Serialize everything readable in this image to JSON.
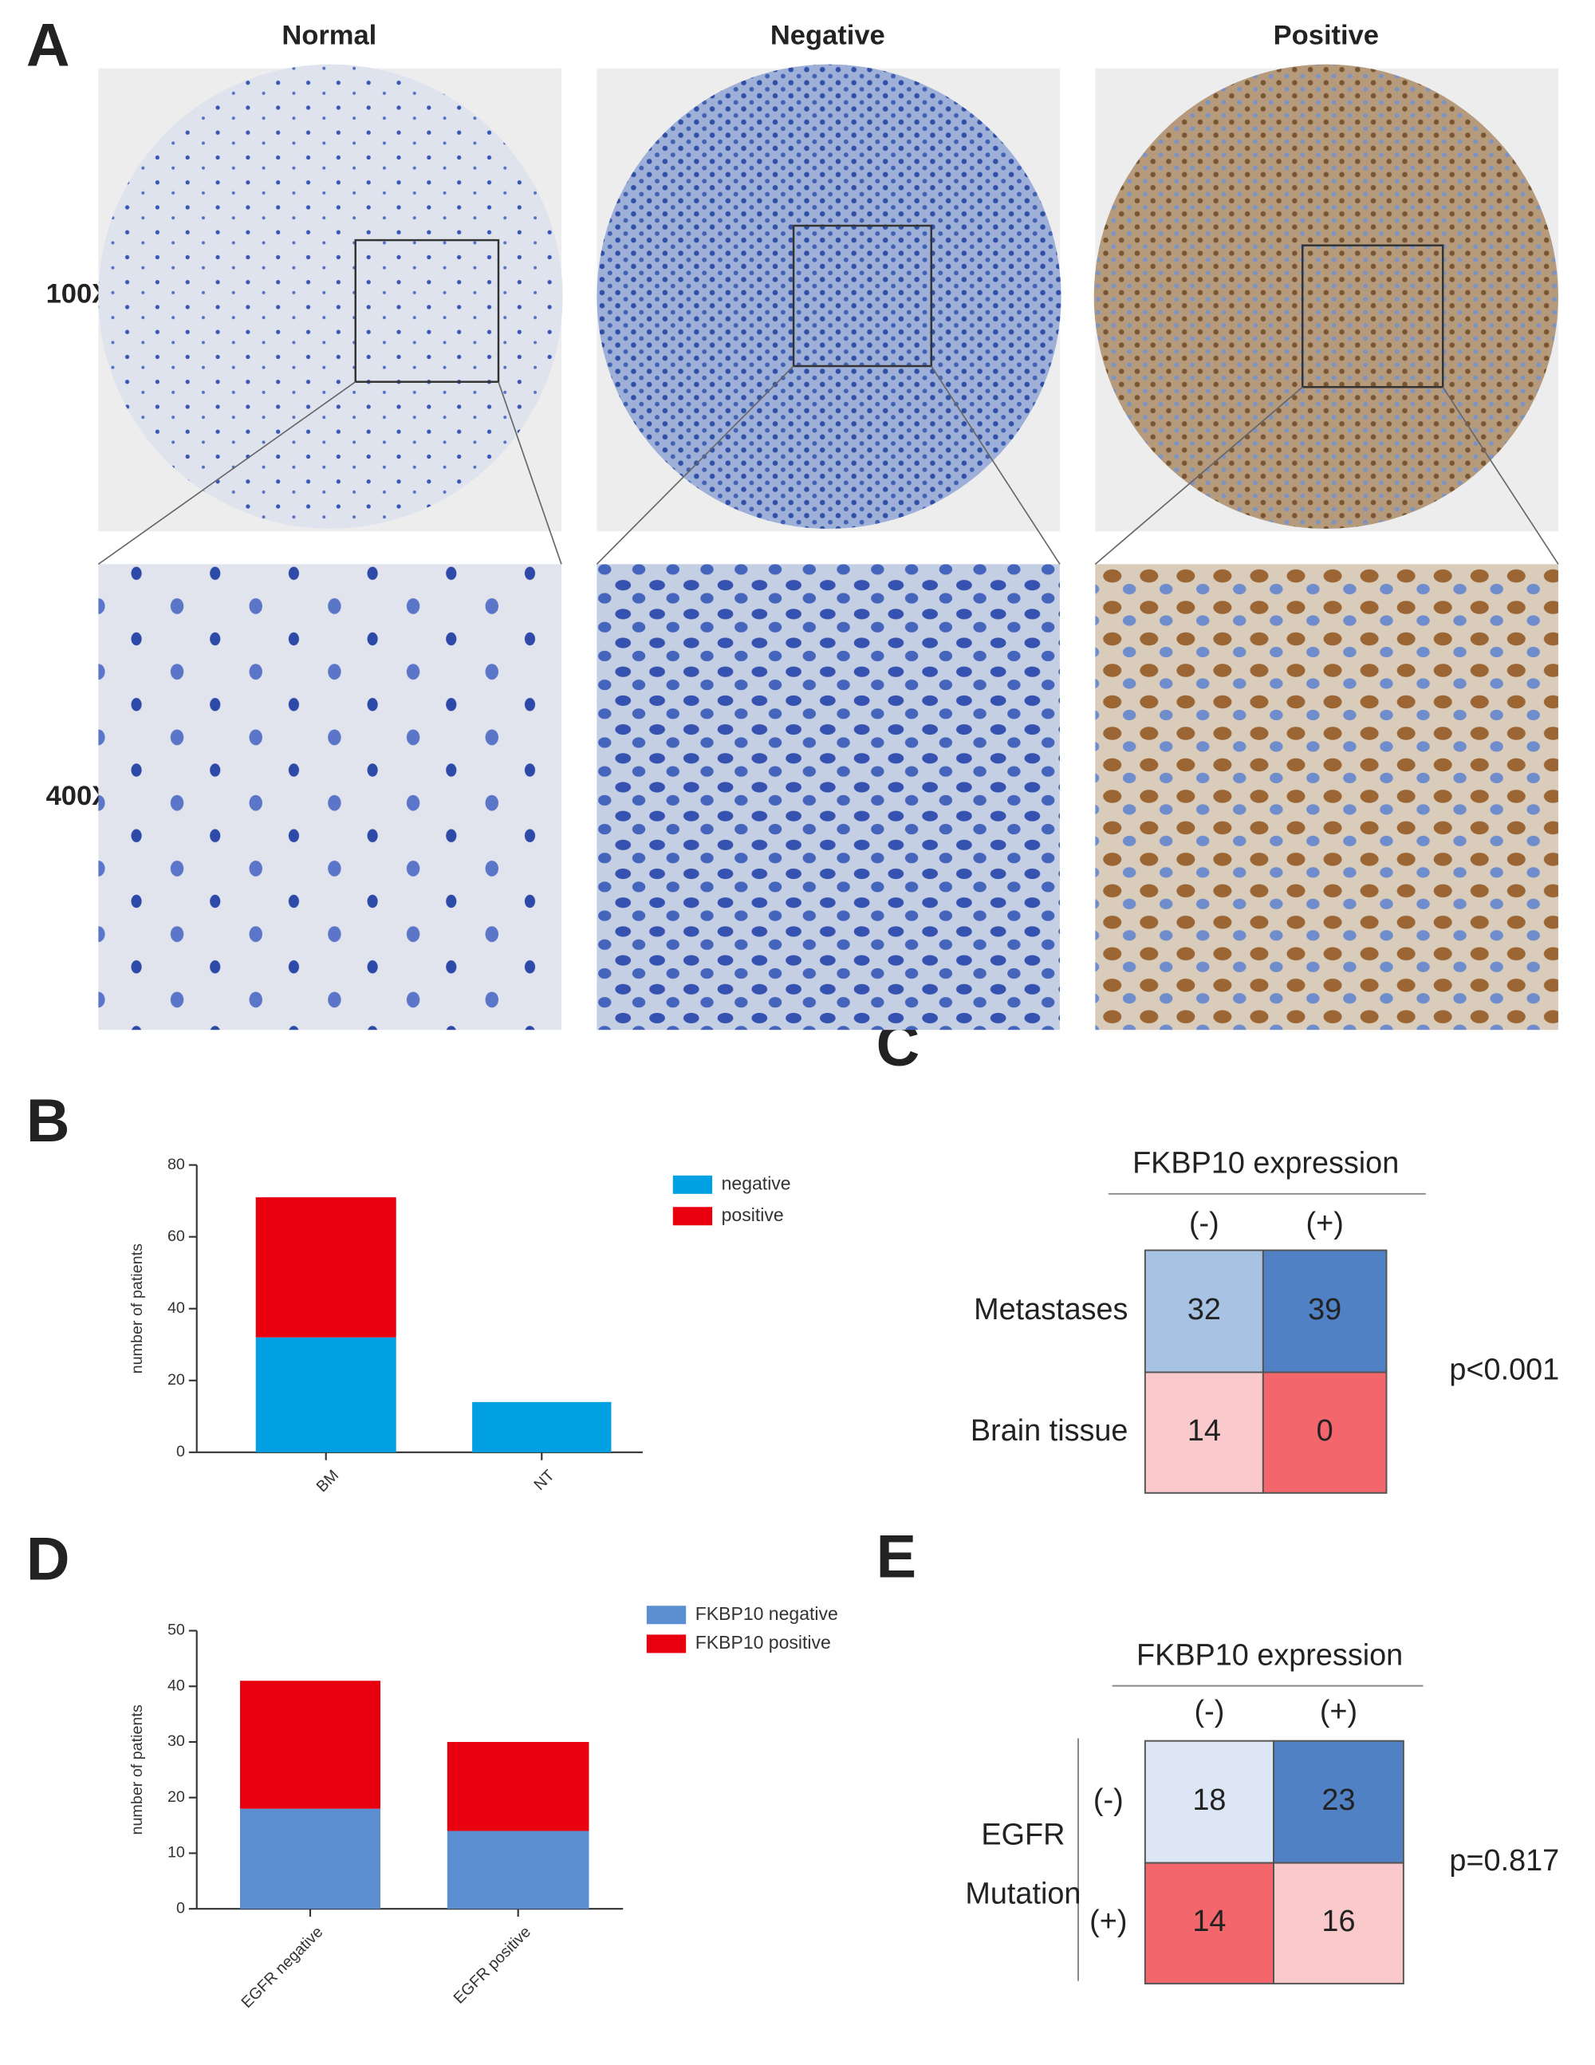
{
  "panel_labels": [
    "A",
    "B",
    "C",
    "D",
    "E"
  ],
  "panel_a": {
    "columns": [
      "Normal",
      "Negative",
      "Positive"
    ],
    "rows": [
      "100X",
      "400X"
    ]
  },
  "chart_data": [
    {
      "type": "bar",
      "stacked": true,
      "ylabel": "number of patients",
      "categories": [
        "BM",
        "NT"
      ],
      "series": [
        {
          "name": "negative",
          "color": "#00a0e3",
          "values": [
            32,
            14
          ]
        },
        {
          "name": "positive",
          "color": "#e8000f",
          "values": [
            39,
            0
          ]
        }
      ],
      "ylim": [
        0,
        80
      ],
      "yticks": [
        0,
        20,
        40,
        60,
        80
      ]
    },
    {
      "type": "bar",
      "stacked": true,
      "ylabel": "number of patients",
      "categories": [
        "EGFR negative",
        "EGFR positive"
      ],
      "series": [
        {
          "name": "FKBP10 negative",
          "color": "#5b8fd2",
          "values": [
            18,
            14
          ]
        },
        {
          "name": "FKBP10 positive",
          "color": "#e8000f",
          "values": [
            23,
            16
          ]
        }
      ],
      "ylim": [
        0,
        50
      ],
      "yticks": [
        0,
        10,
        20,
        30,
        40,
        50
      ]
    }
  ],
  "table_c": {
    "title": "FKBP10 expression",
    "columns": [
      "(-)",
      "(+)"
    ],
    "rows": [
      {
        "label": "Metastases",
        "values": [
          32,
          39
        ],
        "colors": [
          "#a8c2e3",
          "#4f81c4"
        ]
      },
      {
        "label": "Brain tissue",
        "values": [
          14,
          0
        ],
        "colors": [
          "#f9c9cc",
          "#f2666c"
        ]
      }
    ],
    "p_value": "p<0.001"
  },
  "table_e": {
    "title": "FKBP10 expression",
    "columns": [
      "(-)",
      "(+)"
    ],
    "row_group": [
      "EGFR",
      "Mutation"
    ],
    "rows": [
      {
        "label": "(-)",
        "values": [
          18,
          23
        ],
        "colors": [
          "#dde6f4",
          "#4f81c4"
        ]
      },
      {
        "label": "(+)",
        "values": [
          14,
          16
        ],
        "colors": [
          "#f2666c",
          "#f9c9cc"
        ]
      }
    ],
    "p_value": "p=0.817"
  }
}
